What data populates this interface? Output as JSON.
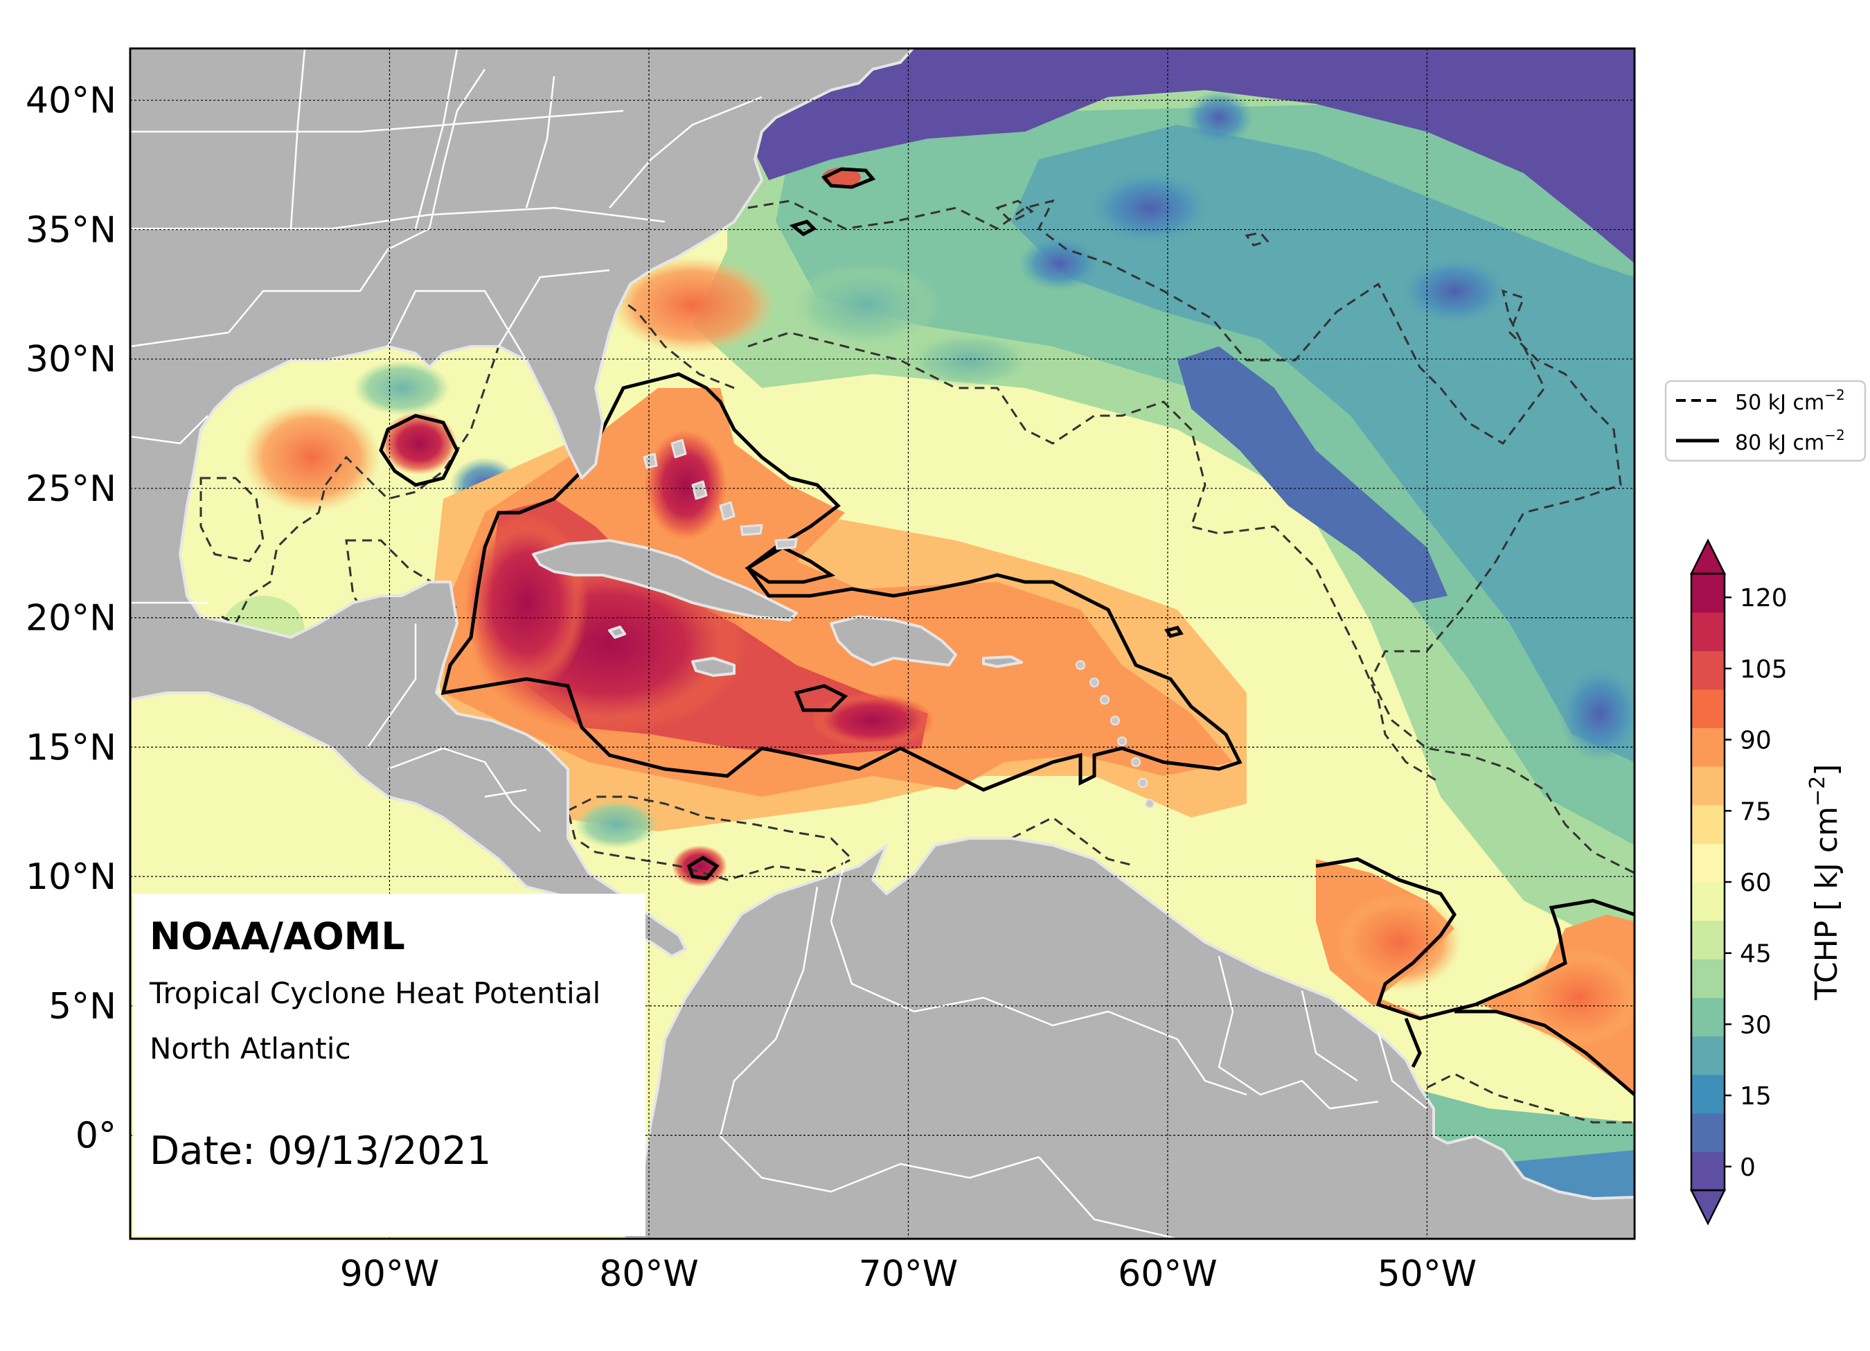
{
  "map": {
    "lat_ticks": [
      "40°N",
      "35°N",
      "30°N",
      "25°N",
      "20°N",
      "15°N",
      "10°N",
      "5°N",
      "0°"
    ],
    "lon_ticks": [
      "90°W",
      "80°W",
      "70°W",
      "60°W",
      "50°W"
    ],
    "lat_values": [
      40,
      35,
      30,
      25,
      20,
      15,
      10,
      5,
      0
    ],
    "lon_values": [
      -90,
      -80,
      -70,
      -60,
      -50
    ],
    "extent": {
      "lon_min": -100,
      "lon_max": -42,
      "lat_min": -4,
      "lat_max": 42
    },
    "colors": {
      "land": "#b3b3b3",
      "border": "#ffffff",
      "coast": "#e6e6e6",
      "frame": "#000000"
    }
  },
  "annotation": {
    "org": "NOAA/AOML",
    "line1": "Tropical Cyclone Heat Potential",
    "line2": "North Atlantic",
    "date": "Date: 09/13/2021"
  },
  "legend": {
    "items": [
      {
        "style": "dashed",
        "label": "50 kJ cm",
        "sup": "−2"
      },
      {
        "style": "solid",
        "label": "80 kJ cm",
        "sup": "−2"
      }
    ]
  },
  "colorbar": {
    "label": "TCHP [ kJ cm",
    "label_sup": "−2",
    "label_end": "]",
    "tick_labels": [
      "120",
      "105",
      "90",
      "75",
      "60",
      "45",
      "30",
      "15",
      "0"
    ],
    "tick_values": [
      120,
      105,
      90,
      75,
      60,
      45,
      30,
      15,
      0
    ],
    "min": -5,
    "max": 125,
    "colors": [
      "#5e4fa2",
      "#4f6fb0",
      "#3f8fbb",
      "#5fa9b0",
      "#7fc4a3",
      "#a6d99f",
      "#cceba0",
      "#eef8a8",
      "#fff6ad",
      "#fee08b",
      "#fdbf6f",
      "#fb9a56",
      "#f46d43",
      "#df4e4a",
      "#c7294c",
      "#a50f4d"
    ]
  }
}
